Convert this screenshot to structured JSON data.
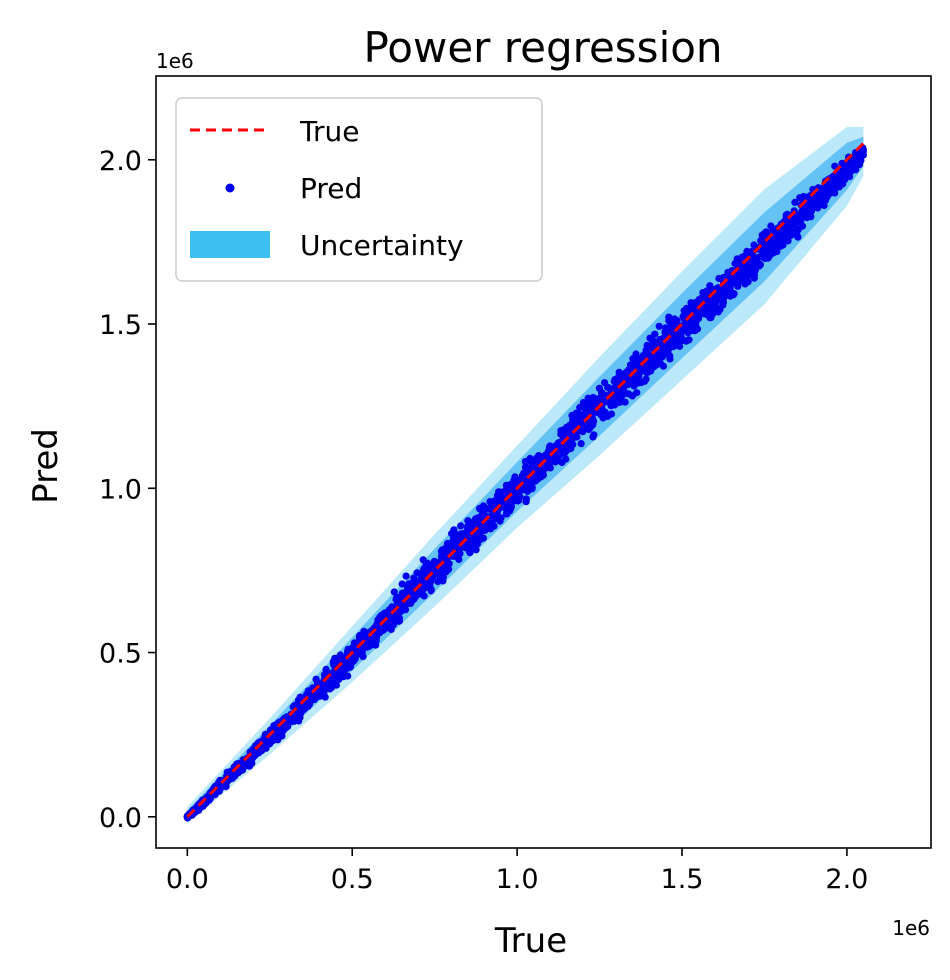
{
  "chart_data": {
    "type": "scatter",
    "title": "Power regression",
    "xlabel": "True",
    "ylabel": "Pred",
    "x_offset_text": "1e6",
    "y_offset_text": "1e6",
    "xlim": [
      -0.095,
      2.255
    ],
    "ylim": [
      -0.095,
      2.255
    ],
    "xticks": [
      0.0,
      0.5,
      1.0,
      1.5,
      2.0
    ],
    "xtick_labels": [
      "0.0",
      "0.5",
      "1.0",
      "1.5",
      "2.0"
    ],
    "yticks": [
      0.0,
      0.5,
      1.0,
      1.5,
      2.0
    ],
    "ytick_labels": [
      "0.0",
      "0.5",
      "1.0",
      "1.5",
      "2.0"
    ],
    "grid": false,
    "legend_position": "top-left",
    "legend": [
      {
        "label": "True",
        "kind": "dashed-line",
        "color": "#ff0000"
      },
      {
        "label": "Pred",
        "kind": "marker",
        "color": "#0000ee"
      },
      {
        "label": "Uncertainty",
        "kind": "patch",
        "color": "#3cbff0"
      }
    ],
    "series": [
      {
        "name": "True",
        "kind": "line",
        "color": "#ff0000",
        "x": [
          0.0,
          2.05
        ],
        "y": [
          0.0,
          2.05
        ]
      },
      {
        "name": "Pred",
        "kind": "scatter",
        "color": "#0000ee",
        "x": [
          0.0,
          0.02,
          0.05,
          0.1,
          0.15,
          0.2,
          0.25,
          0.3,
          0.35,
          0.4,
          0.45,
          0.5,
          0.55,
          0.6,
          0.65,
          0.7,
          0.75,
          0.8,
          0.85,
          0.9,
          0.95,
          1.0,
          1.05,
          1.1,
          1.15,
          1.2,
          1.25,
          1.3,
          1.35,
          1.4,
          1.45,
          1.5,
          1.55,
          1.6,
          1.65,
          1.7,
          1.75,
          1.8,
          1.85,
          1.9,
          1.95,
          2.0,
          2.05
        ],
        "y": [
          0.0,
          0.015,
          0.045,
          0.095,
          0.14,
          0.19,
          0.24,
          0.29,
          0.34,
          0.39,
          0.44,
          0.49,
          0.545,
          0.595,
          0.65,
          0.7,
          0.75,
          0.8,
          0.85,
          0.9,
          0.95,
          1.0,
          1.05,
          1.1,
          1.15,
          1.2,
          1.25,
          1.3,
          1.35,
          1.39,
          1.44,
          1.49,
          1.54,
          1.58,
          1.63,
          1.68,
          1.73,
          1.78,
          1.82,
          1.87,
          1.92,
          1.97,
          2.03
        ],
        "spread": [
          0.005,
          0.01,
          0.015,
          0.025,
          0.03,
          0.035,
          0.04,
          0.045,
          0.05,
          0.055,
          0.06,
          0.06,
          0.065,
          0.07,
          0.075,
          0.075,
          0.08,
          0.08,
          0.085,
          0.085,
          0.085,
          0.085,
          0.085,
          0.085,
          0.09,
          0.09,
          0.09,
          0.09,
          0.09,
          0.09,
          0.09,
          0.09,
          0.09,
          0.09,
          0.09,
          0.085,
          0.085,
          0.08,
          0.08,
          0.075,
          0.07,
          0.06,
          0.04
        ]
      },
      {
        "name": "Uncertainty",
        "kind": "band",
        "color": "#3cbff0",
        "x": [
          0.0,
          0.25,
          0.5,
          0.75,
          1.0,
          1.25,
          1.5,
          1.75,
          2.0,
          2.05
        ],
        "lower": [
          -0.02,
          0.19,
          0.41,
          0.64,
          0.88,
          1.1,
          1.33,
          1.56,
          1.86,
          1.95
        ],
        "upper": [
          0.03,
          0.3,
          0.58,
          0.86,
          1.13,
          1.4,
          1.66,
          1.91,
          2.1,
          2.1
        ]
      }
    ]
  }
}
